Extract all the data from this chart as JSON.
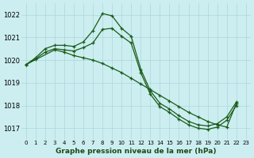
{
  "title": "Graphe pression niveau de la mer (hPa)",
  "bg_color": "#cceef0",
  "grid_color": "#aad8da",
  "line_color": "#1a5c1a",
  "ylim": [
    1016.5,
    1022.5
  ],
  "yticks": [
    1017,
    1018,
    1019,
    1020,
    1021,
    1022
  ],
  "x_ticks": [
    0,
    1,
    2,
    3,
    4,
    5,
    6,
    7,
    8,
    9,
    10,
    11,
    12,
    13,
    14,
    15,
    16,
    17,
    18,
    19,
    20,
    21,
    22,
    23
  ],
  "line1_x": [
    0,
    1,
    2,
    3,
    4,
    5,
    6,
    7,
    8,
    9,
    10,
    11,
    12,
    13,
    14,
    15,
    16,
    17,
    18,
    19,
    20,
    21,
    22
  ],
  "line1_y": [
    1019.8,
    1020.1,
    1020.5,
    1020.65,
    1020.65,
    1020.6,
    1020.8,
    1021.3,
    1022.05,
    1021.95,
    1021.4,
    1021.05,
    1019.6,
    1018.65,
    1018.1,
    1017.85,
    1017.55,
    1017.3,
    1017.15,
    1017.1,
    1017.2,
    1017.5,
    1018.15
  ],
  "line2_x": [
    0,
    1,
    2,
    3,
    4,
    5,
    6,
    7,
    8,
    9,
    10,
    11,
    12,
    13,
    14,
    15,
    16,
    17,
    18,
    19,
    20,
    21,
    22
  ],
  "line2_y": [
    1019.8,
    1020.05,
    1020.35,
    1020.5,
    1020.45,
    1020.4,
    1020.55,
    1020.75,
    1021.35,
    1021.4,
    1021.05,
    1020.75,
    1019.45,
    1018.5,
    1017.95,
    1017.7,
    1017.4,
    1017.15,
    1017.0,
    1016.95,
    1017.05,
    1017.35,
    1018.0
  ],
  "line3_x": [
    0,
    3,
    4,
    5,
    6,
    7,
    8,
    9,
    10,
    11,
    12,
    13,
    14,
    15,
    16,
    17,
    18,
    19,
    20,
    21,
    22
  ],
  "line3_y": [
    1019.8,
    1020.45,
    1020.35,
    1020.2,
    1020.1,
    1020.0,
    1019.85,
    1019.65,
    1019.45,
    1019.2,
    1018.95,
    1018.7,
    1018.45,
    1018.2,
    1017.95,
    1017.7,
    1017.5,
    1017.3,
    1017.15,
    1017.05,
    1018.1
  ]
}
